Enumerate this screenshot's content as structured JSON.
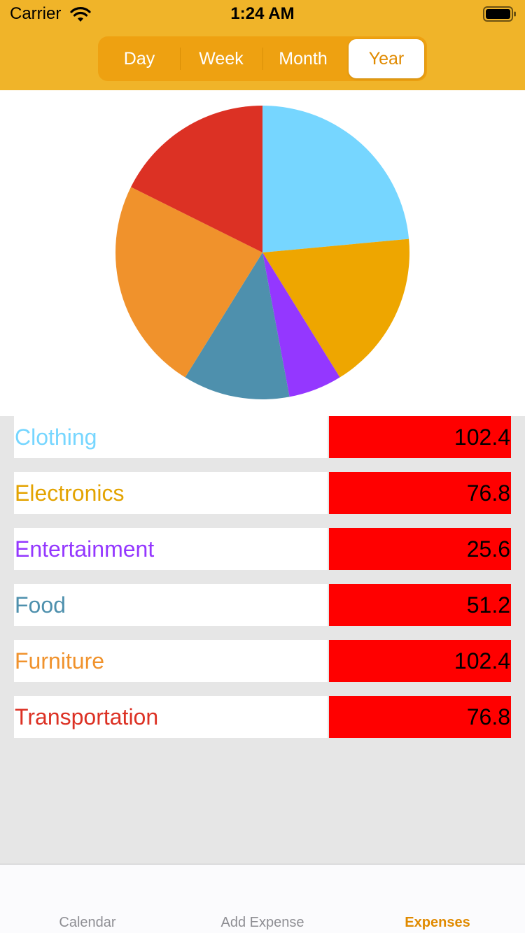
{
  "status_bar": {
    "carrier": "Carrier",
    "time": "1:24 AM"
  },
  "period_control": {
    "segments": [
      "Day",
      "Week",
      "Month",
      "Year"
    ],
    "selected": "Year"
  },
  "chart_data": {
    "type": "pie",
    "title": "",
    "slices": [
      {
        "label": "Clothing",
        "value": 102.4,
        "color": "#76d6ff"
      },
      {
        "label": "Electronics",
        "value": 76.8,
        "color": "#eea600"
      },
      {
        "label": "Entertainment",
        "value": 25.6,
        "color": "#9437ff"
      },
      {
        "label": "Food",
        "value": 51.2,
        "color": "#4e90ad"
      },
      {
        "label": "Furniture",
        "value": 102.4,
        "color": "#f0922c"
      },
      {
        "label": "Transportation",
        "value": 76.8,
        "color": "#dc3124"
      }
    ]
  },
  "expenses": [
    {
      "category": "Clothing",
      "amount": "102.4",
      "color": "#76d6ff"
    },
    {
      "category": "Electronics",
      "amount": "76.8",
      "color": "#e3a300"
    },
    {
      "category": "Entertainment",
      "amount": "25.6",
      "color": "#9437ff"
    },
    {
      "category": "Food",
      "amount": "51.2",
      "color": "#4e90ad"
    },
    {
      "category": "Furniture",
      "amount": "102.4",
      "color": "#f0922c"
    },
    {
      "category": "Transportation",
      "amount": "76.8",
      "color": "#dc3124"
    }
  ],
  "tab_bar": {
    "tabs": [
      "Calendar",
      "Add Expense",
      "Expenses"
    ],
    "selected": "Expenses"
  },
  "colors": {
    "header": "#f0b429",
    "accent": "#e08a00",
    "amount_bg": "#ff0000"
  }
}
